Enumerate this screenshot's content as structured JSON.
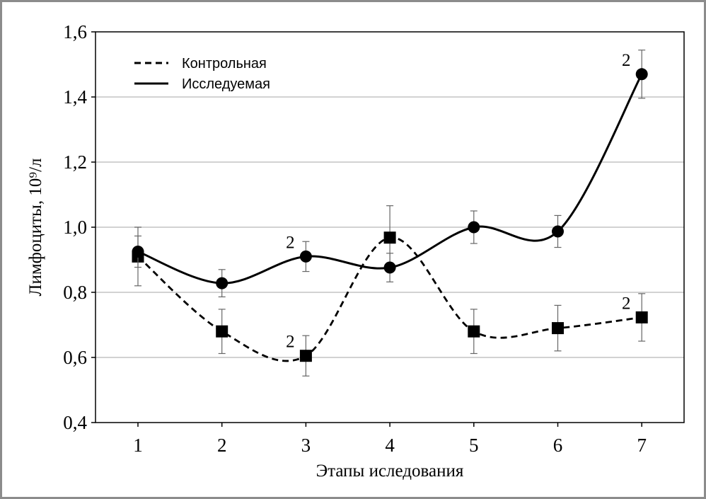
{
  "chart_data": {
    "type": "line",
    "xlabel": "Этапы иследования",
    "ylabel": "Лимфоциты, 10⁹/л",
    "ylim": [
      0.4,
      1.6
    ],
    "yticks": [
      "0,4",
      "0,6",
      "0,8",
      "1,0",
      "1,2",
      "1,4",
      "1,6"
    ],
    "x": [
      "1",
      "2",
      "3",
      "4",
      "5",
      "6",
      "7"
    ],
    "grid": "horizontal",
    "legend_position": "top-left",
    "series": [
      {
        "name": "Контрольная",
        "line_style": "dashed",
        "marker": "square",
        "color": "#000000",
        "values": [
          0.91,
          0.68,
          0.605,
          0.968,
          0.68,
          0.69,
          0.723
        ],
        "error": [
          0.09,
          0.068,
          0.062,
          0.098,
          0.068,
          0.07,
          0.073
        ]
      },
      {
        "name": "Исследуемая",
        "line_style": "solid",
        "marker": "circle",
        "color": "#000000",
        "values": [
          0.925,
          0.828,
          0.91,
          0.876,
          1.0,
          0.987,
          1.47
        ],
        "error": [
          0.048,
          0.042,
          0.046,
          0.044,
          0.05,
          0.049,
          0.074
        ]
      }
    ],
    "annotations": [
      {
        "text": "2",
        "series": 1,
        "point": 2
      },
      {
        "text": "2",
        "series": 0,
        "point": 2
      },
      {
        "text": "2",
        "series": 1,
        "point": 6
      },
      {
        "text": "2",
        "series": 0,
        "point": 6
      }
    ]
  }
}
